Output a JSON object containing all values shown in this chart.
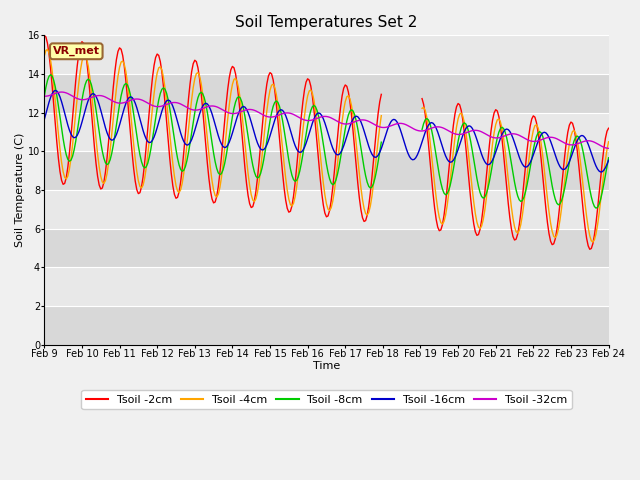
{
  "title": "Soil Temperatures Set 2",
  "xlabel": "Time",
  "ylabel": "Soil Temperature (C)",
  "annotation_text": "VR_met",
  "ylim": [
    0,
    16
  ],
  "yticks": [
    0,
    2,
    4,
    6,
    8,
    10,
    12,
    14,
    16
  ],
  "xtick_labels": [
    "Feb 9",
    "Feb 10",
    "Feb 11",
    "Feb 12",
    "Feb 13",
    "Feb 14",
    "Feb 15",
    "Feb 16",
    "Feb 17",
    "Feb 18",
    "Feb 19",
    "Feb 20",
    "Feb 21",
    "Feb 22",
    "Feb 23",
    "Feb 24"
  ],
  "series": {
    "Tsoil -2cm": {
      "color": "#ff0000",
      "linewidth": 1.0
    },
    "Tsoil -4cm": {
      "color": "#ffa500",
      "linewidth": 1.0
    },
    "Tsoil -8cm": {
      "color": "#00cc00",
      "linewidth": 1.0
    },
    "Tsoil -16cm": {
      "color": "#0000cc",
      "linewidth": 1.0
    },
    "Tsoil -32cm": {
      "color": "#cc00cc",
      "linewidth": 1.0
    }
  },
  "plot_bg": "#e8e8e8",
  "alt_bg": "#d8d8d8",
  "grid_color": "#ffffff",
  "fig_bg": "#f0f0f0",
  "title_fontsize": 11,
  "axis_fontsize": 8,
  "tick_fontsize": 7,
  "legend_fontsize": 8
}
